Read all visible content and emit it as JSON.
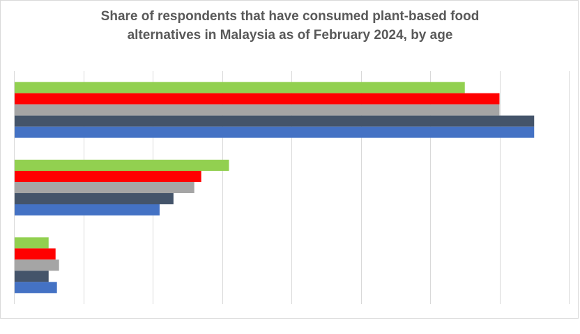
{
  "chart_data": {
    "type": "bar",
    "orientation": "horizontal",
    "title_lines": [
      "Share of respondents that have consumed plant-based food",
      "alternatives in Malaysia as of February 2024, by age"
    ],
    "xlabel": "",
    "ylabel": "",
    "categories": [
      "",
      "",
      ""
    ],
    "xlim": [
      0,
      8
    ],
    "grid": true,
    "legend": "none",
    "series": [
      {
        "color": "#92d050",
        "values": [
          6.5,
          3.1,
          0.5
        ]
      },
      {
        "color": "#ff0000",
        "values": [
          7.0,
          2.7,
          0.6
        ]
      },
      {
        "color": "#a5a5a5",
        "values": [
          7.0,
          2.6,
          0.65
        ]
      },
      {
        "color": "#44546a",
        "values": [
          7.5,
          2.3,
          0.5
        ]
      },
      {
        "color": "#4472c4",
        "values": [
          7.5,
          2.1,
          0.62
        ]
      }
    ]
  }
}
